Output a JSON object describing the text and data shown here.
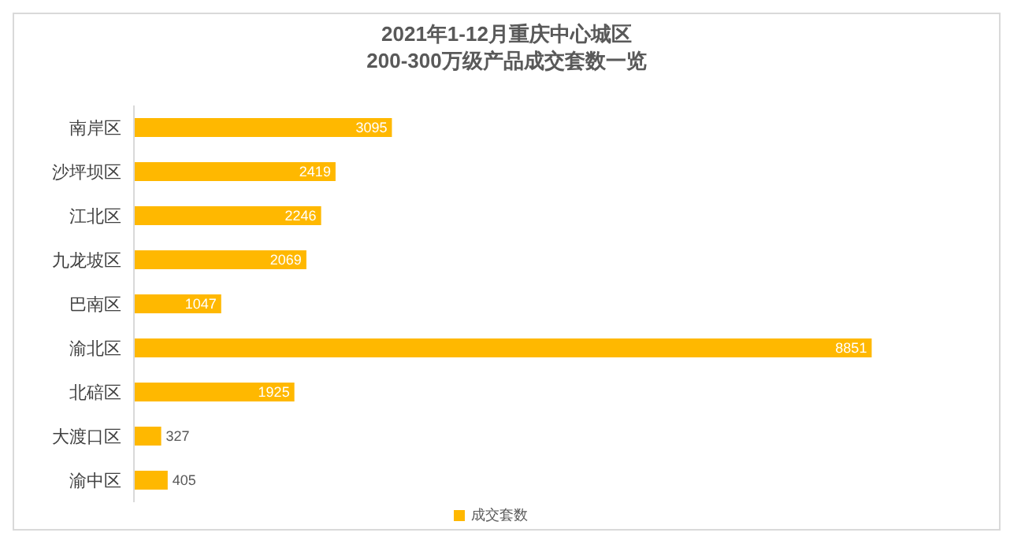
{
  "chart_data": {
    "type": "bar",
    "orientation": "horizontal",
    "title": "2021年1-12月重庆中心城区\n200-300万级产品成交套数一览",
    "categories": [
      "南岸区",
      "沙坪坝区",
      "江北区",
      "九龙坡区",
      "巴南区",
      "渝北区",
      "北碚区",
      "大渡口区",
      "渝中区"
    ],
    "series": [
      {
        "name": "成交套数",
        "color": "#ffb800",
        "values": [
          3095,
          2419,
          2246,
          2069,
          1047,
          8851,
          1925,
          327,
          405
        ]
      }
    ],
    "tick_labels": "y",
    "legend": "bottom",
    "data_labels": true
  }
}
